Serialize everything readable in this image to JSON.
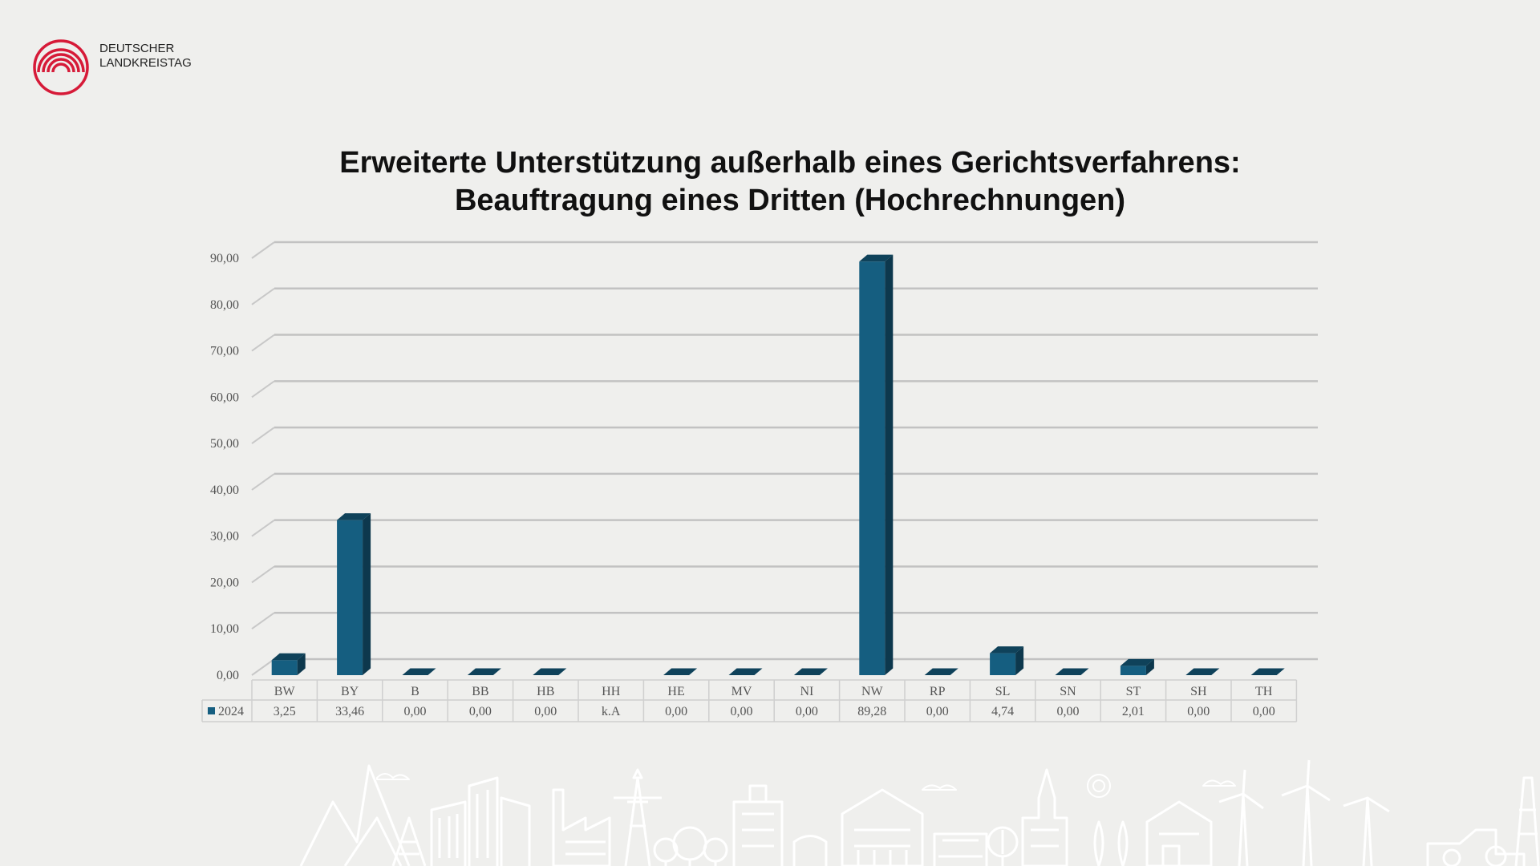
{
  "logo": {
    "line1": "DEUTSCHER",
    "line2": "LANDKREISTAG",
    "color": "#d61a38"
  },
  "chart_data": {
    "type": "bar",
    "title": [
      "Erweiterte Unterstützung außerhalb eines Gerichtsverfahrens:",
      "Beauftragung eines Dritten (Hochrechnungen)"
    ],
    "categories": [
      "BW",
      "BY",
      "B",
      "BB",
      "HB",
      "HH",
      "HE",
      "MV",
      "NI",
      "NW",
      "RP",
      "SL",
      "SN",
      "ST",
      "SH",
      "TH"
    ],
    "series": [
      {
        "name": "2024",
        "values": [
          3.25,
          33.46,
          0,
          0,
          0,
          null,
          0,
          0,
          0,
          89.28,
          0,
          4.74,
          0,
          2.01,
          0,
          0
        ],
        "labels": [
          "3,25",
          "33,46",
          "0,00",
          "0,00",
          "0,00",
          "k.A",
          "0,00",
          "0,00",
          "0,00",
          "89,28",
          "0,00",
          "4,74",
          "0,00",
          "2,01",
          "0,00",
          "0,00"
        ],
        "color": "#155e80"
      }
    ],
    "y_ticks": [
      "0,00",
      "10,00",
      "20,00",
      "30,00",
      "40,00",
      "50,00",
      "60,00",
      "70,00",
      "80,00",
      "90,00"
    ],
    "ylim": [
      0,
      90
    ],
    "grid": true,
    "legend": "data-table",
    "data_table": true,
    "xlabel": "",
    "ylabel": ""
  }
}
